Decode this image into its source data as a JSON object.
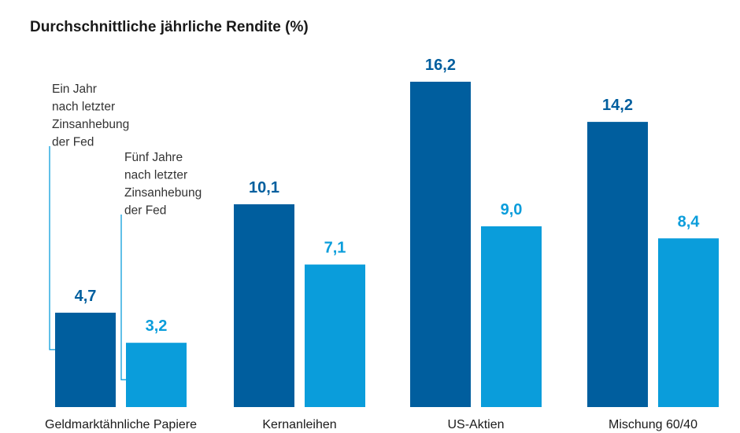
{
  "chart_data": {
    "type": "bar",
    "title": "Durchschnittliche jährliche Rendite (%)",
    "xlabel": "",
    "ylabel": "",
    "categories": [
      "Geldmarktähnliche Papiere",
      "Kernanleihen",
      "US-Aktien",
      "Mischung 60/40"
    ],
    "series": [
      {
        "values": [
          4.7,
          10.1,
          16.2,
          14.2
        ],
        "labels": [
          "4,7",
          "10,1",
          "16,2",
          "14,2"
        ]
      },
      {
        "values": [
          3.2,
          7.1,
          9.0,
          8.4
        ],
        "labels": [
          "3,2",
          "7,1",
          "9,0",
          "8,4"
        ]
      }
    ],
    "ylim": [
      0,
      16.2
    ],
    "grid": false,
    "annotations": [
      {
        "lines": [
          "Ein Jahr",
          "nach letzter",
          "Zinsanhebung",
          "der Fed"
        ]
      },
      {
        "lines": [
          "Fünf Jahre",
          "nach letzter",
          "Zinsanhebung",
          "der Fed"
        ]
      }
    ],
    "colors": {
      "series1": "#005e9e",
      "series2": "#0a9ddb",
      "text": "#1a1a1a",
      "annotation_line": "#0a9ddb"
    }
  }
}
